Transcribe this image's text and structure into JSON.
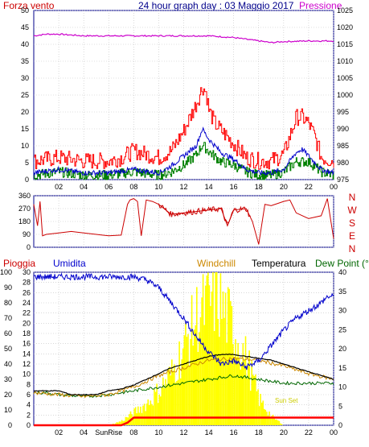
{
  "title": "24 hour graph day : 03 Maggio 2017",
  "colors": {
    "wind": "#ff0000",
    "gust": "#ff0000",
    "avgwind": "#0000cc",
    "windgreen": "#008000",
    "pressure": "#cc00cc",
    "direction": "#cc0000",
    "humidity": "#0000cc",
    "temperature": "#000000",
    "windchill": "#cc8800",
    "dewpoint": "#006600",
    "solar": "#ffff00",
    "rain": "#ff0000",
    "grid": "#c0c0c0",
    "dark": "#00008b"
  },
  "chart_data": [
    {
      "type": "line",
      "name": "wind-pressure",
      "left_label": "Forza vento",
      "right_label": "Pressione",
      "left_ticks": [
        "0",
        "5",
        "10",
        "15",
        "20",
        "25",
        "30",
        "35",
        "40",
        "45",
        "50"
      ],
      "right_ticks": [
        "975",
        "980",
        "985",
        "990",
        "995",
        "1000",
        "1005",
        "1010",
        "1015",
        "1020",
        "1025"
      ],
      "x_ticks": [
        "02",
        "04",
        "06",
        "08",
        "10",
        "12",
        "14",
        "16",
        "18",
        "20",
        "22",
        "00"
      ],
      "ylim_left": [
        0,
        50
      ],
      "ylim_right": [
        975,
        1025
      ],
      "xlim_hours": [
        0,
        24
      ],
      "pressure": {
        "x": [
          0,
          1,
          2,
          4,
          6,
          8,
          10,
          12,
          14,
          16,
          18,
          19,
          20,
          22,
          24
        ],
        "y": [
          1017.5,
          1018,
          1018,
          1017.5,
          1017.5,
          1017.5,
          1017.5,
          1017.5,
          1017.5,
          1017,
          1016,
          1015.5,
          1015.8,
          1016,
          1016
        ]
      },
      "gust": {
        "x": [
          0,
          2,
          4,
          6,
          7,
          8,
          10,
          11,
          12,
          12.5,
          13,
          13.5,
          13.8,
          14,
          14.5,
          15,
          16,
          17,
          18,
          19,
          20,
          21,
          21.5,
          22,
          22.5,
          23,
          24
        ],
        "y": [
          5,
          6,
          5,
          5,
          6,
          8,
          6,
          8,
          14,
          18,
          22,
          27,
          25,
          20,
          16,
          14,
          10,
          6,
          5,
          5,
          7,
          18,
          18,
          16,
          12,
          6,
          5
        ]
      },
      "avgwind": {
        "x": [
          0,
          2,
          4,
          6,
          8,
          10,
          11,
          12,
          13,
          13.5,
          14,
          15,
          16,
          17,
          18,
          19,
          20,
          21,
          21.5,
          22,
          23,
          24
        ],
        "y": [
          2,
          3,
          2,
          2,
          3,
          2,
          4,
          7,
          10,
          15,
          12,
          8,
          6,
          3,
          2,
          2,
          3,
          8,
          9,
          7,
          3,
          2
        ]
      },
      "greenwind": {
        "x": [
          0,
          2,
          4,
          6,
          8,
          10,
          11,
          12,
          13,
          13.5,
          14,
          15,
          16,
          17,
          18,
          19,
          20,
          21,
          22,
          23,
          24
        ],
        "y": [
          1,
          2,
          1,
          1,
          2,
          1,
          2,
          4,
          7,
          10,
          8,
          5,
          4,
          2,
          1,
          1,
          2,
          5,
          5,
          2,
          1
        ]
      }
    },
    {
      "type": "line",
      "name": "wind-direction",
      "left_ticks": [
        "0",
        "90",
        "180",
        "270",
        "360"
      ],
      "right_labels": [
        "N",
        "W",
        "S",
        "E",
        "N"
      ],
      "x_ticks": [],
      "ylim": [
        0,
        360
      ],
      "direction": {
        "x": [
          0,
          0.3,
          0.5,
          0.7,
          1,
          2,
          3,
          4,
          5,
          6,
          7,
          7.5,
          7.7,
          8,
          8.3,
          8.6,
          9,
          9.5,
          10,
          11,
          12,
          13,
          14,
          15,
          15.5,
          16,
          17,
          17.5,
          18,
          18.5,
          19,
          20,
          20.5,
          21,
          22,
          23,
          23.5,
          24
        ],
        "y": [
          300,
          150,
          320,
          80,
          90,
          100,
          110,
          100,
          90,
          80,
          85,
          300,
          330,
          340,
          320,
          80,
          330,
          320,
          300,
          230,
          240,
          250,
          260,
          270,
          150,
          260,
          270,
          180,
          20,
          300,
          290,
          320,
          330,
          240,
          200,
          220,
          340,
          60
        ]
      }
    },
    {
      "type": "line",
      "name": "temperature-humidity",
      "labels": [
        "Pioggia",
        "Umidita",
        "Windchill",
        "Temperatura",
        "Dew Point (°C"
      ],
      "left_ticks_humidity": [
        "0",
        "10",
        "20",
        "30",
        "40",
        "50",
        "60",
        "70",
        "80",
        "90",
        "100"
      ],
      "left_ticks_rain": [
        "0",
        "2",
        "4",
        "6",
        "8",
        "10",
        "12",
        "14",
        "16",
        "18",
        "20",
        "22",
        "24",
        "26",
        "28",
        "30"
      ],
      "right_ticks_temp": [
        "0",
        "5",
        "10",
        "15",
        "20",
        "25",
        "30",
        "35",
        "40"
      ],
      "x_ticks": [
        "02",
        "04",
        "SunRise",
        "08",
        "10",
        "12",
        "14",
        "16",
        "18",
        "20",
        "22",
        "00"
      ],
      "annotations": [
        "Sun Set"
      ],
      "ylim_humidity": [
        0,
        100
      ],
      "ylim_temp": [
        0,
        40
      ],
      "humidity": {
        "x": [
          0,
          1,
          2,
          4,
          6,
          8,
          9,
          10,
          11,
          12,
          13,
          14,
          15,
          16,
          17,
          18,
          19,
          20,
          21,
          22,
          23,
          23.5,
          24
        ],
        "y": [
          97,
          97,
          97,
          97,
          97,
          97,
          95,
          90,
          80,
          70,
          58,
          48,
          40,
          42,
          38,
          42,
          52,
          62,
          70,
          75,
          80,
          84,
          84
        ]
      },
      "temperature": {
        "x": [
          0,
          1,
          2,
          3,
          4,
          5,
          6,
          7,
          8,
          9,
          10,
          11,
          12,
          13,
          14,
          15,
          16,
          17,
          18,
          19,
          20,
          21,
          22,
          23,
          24
        ],
        "y": [
          9,
          9,
          9,
          8,
          8,
          8,
          9,
          9.5,
          10.5,
          12,
          13.5,
          15,
          16,
          17,
          18,
          18.5,
          18.5,
          18,
          17.5,
          17,
          16,
          15,
          14,
          13,
          12
        ]
      },
      "windchill": {
        "x": [
          0,
          2,
          4,
          6,
          8,
          10,
          12,
          14,
          16,
          18,
          20,
          22,
          24
        ],
        "y": [
          8.5,
          8,
          7.5,
          8,
          10,
          13,
          15,
          17,
          17.5,
          17,
          15.5,
          13.5,
          12
        ]
      },
      "dewpoint": {
        "x": [
          0,
          1,
          2,
          4,
          6,
          8,
          10,
          12,
          14,
          16,
          18,
          20,
          22,
          24
        ],
        "y": [
          8.5,
          8.5,
          8,
          7.5,
          8,
          9,
          10,
          11,
          12,
          13,
          12,
          11,
          11,
          11
        ]
      },
      "solar": {
        "x": [
          0,
          6,
          7,
          8,
          9,
          10,
          11,
          12,
          13,
          14,
          14.5,
          15,
          16,
          17,
          18,
          19,
          20,
          24
        ],
        "y": [
          0,
          0,
          1,
          3,
          5,
          8,
          12,
          18,
          25,
          28,
          30,
          27,
          22,
          15,
          6,
          2,
          0,
          0
        ]
      },
      "rain": {
        "x": [
          0,
          7,
          7.5,
          8,
          24
        ],
        "y": [
          0,
          0,
          0.5,
          1.5,
          1.5
        ]
      }
    }
  ]
}
